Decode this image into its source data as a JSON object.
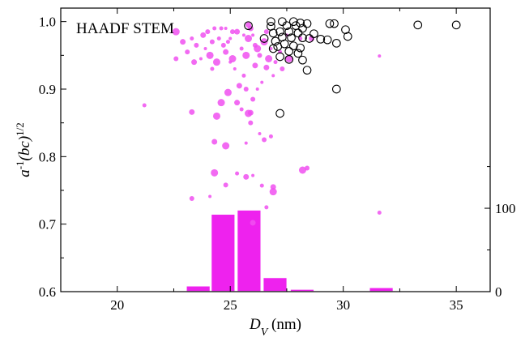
{
  "chart_data": [
    {
      "type": "scatter",
      "annotation": "HAADF STEM",
      "xlabel_main": "D",
      "xlabel_sub": "V",
      "xlabel_unit": " (nm)",
      "ylabel_a": "a",
      "ylabel_exp1": "-1",
      "ylabel_bc": "(bc)",
      "ylabel_exp2": "1/2",
      "xlim": [
        17.5,
        36.5
      ],
      "ylim": [
        0.6,
        1.02
      ],
      "xticks": [
        20,
        25,
        30,
        35
      ],
      "yticks": [
        0.6,
        0.7,
        0.8,
        0.9,
        1.0
      ],
      "xtick_labels": [
        "20",
        "25",
        "30",
        "35"
      ],
      "ytick_labels": [
        "0.6",
        "0.7",
        "0.8",
        "0.9",
        "1.0"
      ],
      "series": [
        {
          "marker": "filled-circle",
          "color": "#f050f0",
          "points": [
            [
              24.6,
              0.99
            ],
            [
              25.3,
              0.985
            ],
            [
              25.8,
              0.975
            ],
            [
              24.2,
              0.97
            ],
            [
              26.0,
              0.98
            ],
            [
              25.5,
              0.96
            ],
            [
              24.8,
              0.955
            ],
            [
              25.1,
              0.945
            ],
            [
              26.3,
              0.95
            ],
            [
              23.9,
              0.96
            ],
            [
              24.5,
              0.975
            ],
            [
              25.9,
              0.99
            ],
            [
              26.5,
              0.97
            ],
            [
              24.0,
              0.985
            ],
            [
              25.2,
              0.93
            ],
            [
              25.6,
              0.92
            ],
            [
              26.1,
              0.935
            ],
            [
              24.4,
              0.94
            ],
            [
              23.5,
              0.965
            ],
            [
              26.8,
              0.96
            ],
            [
              27.2,
              0.955
            ],
            [
              25.4,
              0.905
            ],
            [
              24.9,
              0.895
            ],
            [
              25.7,
              0.9
            ],
            [
              26.4,
              0.91
            ],
            [
              23.3,
              0.975
            ],
            [
              22.9,
              0.97
            ],
            [
              24.1,
              0.95
            ],
            [
              26.6,
              0.985
            ],
            [
              25.0,
              0.975
            ],
            [
              24.3,
              0.99
            ],
            [
              25.8,
              0.995
            ],
            [
              26.2,
              0.96
            ],
            [
              24.7,
              0.965
            ],
            [
              23.7,
              0.945
            ],
            [
              27.0,
              0.94
            ],
            [
              25.3,
              0.88
            ],
            [
              24.6,
              0.88
            ],
            [
              26.0,
              0.885
            ],
            [
              27.5,
              0.98
            ],
            [
              28.1,
              0.975
            ],
            [
              28.6,
              0.975
            ],
            [
              22.6,
              0.985
            ],
            [
              23.1,
              0.955
            ],
            [
              26.9,
              0.92
            ],
            [
              25.5,
              0.87
            ],
            [
              25.9,
              0.865
            ],
            [
              24.4,
              0.86
            ],
            [
              25.1,
              0.985
            ],
            [
              25.6,
              0.98
            ],
            [
              24.9,
              0.97
            ],
            [
              23.8,
              0.98
            ],
            [
              26.7,
              0.945
            ],
            [
              27.3,
              0.93
            ],
            [
              25.0,
              0.94
            ],
            [
              24.2,
              0.93
            ],
            [
              23.4,
              0.94
            ],
            [
              25.7,
              0.95
            ],
            [
              26.1,
              0.965
            ],
            [
              24.8,
              0.99
            ],
            [
              21.2,
              0.876
            ],
            [
              23.3,
              0.866
            ],
            [
              25.8,
              0.864
            ],
            [
              25.9,
              0.85
            ],
            [
              26.3,
              0.834
            ],
            [
              26.8,
              0.83
            ],
            [
              24.3,
              0.822
            ],
            [
              24.8,
              0.816
            ],
            [
              26.5,
              0.825
            ],
            [
              25.7,
              0.82
            ],
            [
              25.3,
              0.775
            ],
            [
              25.7,
              0.77
            ],
            [
              24.3,
              0.776
            ],
            [
              24.8,
              0.758
            ],
            [
              26.0,
              0.772
            ],
            [
              26.4,
              0.757
            ],
            [
              26.9,
              0.755
            ],
            [
              26.9,
              0.748
            ],
            [
              23.3,
              0.738
            ],
            [
              24.1,
              0.741
            ],
            [
              26.6,
              0.725
            ],
            [
              26.0,
              0.702
            ],
            [
              28.2,
              0.78
            ],
            [
              28.4,
              0.783
            ],
            [
              31.6,
              0.949
            ],
            [
              31.6,
              0.717
            ],
            [
              26.6,
              0.932
            ],
            [
              27.6,
              0.945
            ],
            [
              22.6,
              0.945
            ],
            [
              26.2,
              0.9
            ]
          ]
        },
        {
          "marker": "open-circle",
          "color": "#000000",
          "points": [
            [
              25.8,
              0.994
            ],
            [
              26.8,
              1.0
            ],
            [
              27.3,
              1.0
            ],
            [
              27.8,
              1.0
            ],
            [
              28.1,
              0.998
            ],
            [
              28.4,
              0.997
            ],
            [
              29.4,
              0.997
            ],
            [
              29.6,
              0.997
            ],
            [
              26.8,
              0.993
            ],
            [
              27.5,
              0.994
            ],
            [
              27.9,
              0.994
            ],
            [
              28.2,
              0.99
            ],
            [
              27.2,
              0.985
            ],
            [
              27.6,
              0.985
            ],
            [
              26.9,
              0.983
            ],
            [
              28.0,
              0.983
            ],
            [
              30.1,
              0.988
            ],
            [
              27.3,
              0.977
            ],
            [
              27.7,
              0.976
            ],
            [
              28.2,
              0.976
            ],
            [
              28.5,
              0.975
            ],
            [
              27.0,
              0.971
            ],
            [
              29.0,
              0.974
            ],
            [
              29.3,
              0.973
            ],
            [
              29.7,
              0.968
            ],
            [
              30.2,
              0.978
            ],
            [
              27.4,
              0.967
            ],
            [
              27.8,
              0.964
            ],
            [
              28.1,
              0.961
            ],
            [
              27.1,
              0.963
            ],
            [
              26.9,
              0.96
            ],
            [
              27.6,
              0.956
            ],
            [
              28.0,
              0.953
            ],
            [
              27.2,
              0.948
            ],
            [
              27.6,
              0.944
            ],
            [
              28.2,
              0.943
            ],
            [
              28.4,
              0.928
            ],
            [
              29.7,
              0.9
            ],
            [
              27.2,
              0.864
            ],
            [
              33.3,
              0.995
            ],
            [
              35.0,
              0.995
            ],
            [
              28.7,
              0.982
            ],
            [
              26.5,
              0.975
            ]
          ]
        }
      ],
      "histogram": {
        "right_axis_ticks": [
          0,
          100
        ],
        "right_axis_labels": [
          "0",
          "100"
        ],
        "right_axis_range": [
          0,
          340
        ],
        "bin_width": 1.1,
        "bars": [
          {
            "x_center": 21.0,
            "count": 1
          },
          {
            "x_center": 23.6,
            "count": 7
          },
          {
            "x_center": 24.7,
            "count": 93
          },
          {
            "x_center": 25.85,
            "count": 98
          },
          {
            "x_center": 27.0,
            "count": 17
          },
          {
            "x_center": 28.2,
            "count": 3
          },
          {
            "x_center": 29.4,
            "count": 1
          },
          {
            "x_center": 31.7,
            "count": 5
          }
        ],
        "color": "#ee22ee"
      }
    }
  ]
}
